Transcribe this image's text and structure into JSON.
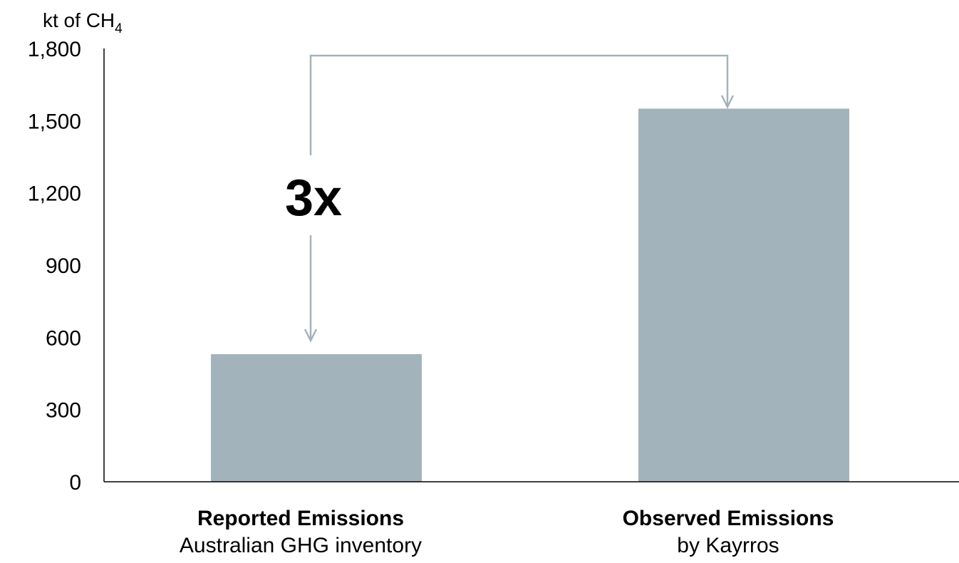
{
  "chart_data": {
    "type": "bar",
    "ylabel_main": "kt of CH",
    "ylabel_subscript": "4",
    "ylim": [
      0,
      1800
    ],
    "y_ticks": [
      "0",
      "300",
      "600",
      "900",
      "1,200",
      "1,500",
      "1,800"
    ],
    "y_tick_values": [
      0,
      300,
      600,
      900,
      1200,
      1500,
      1800
    ],
    "grid": false,
    "legend": "none",
    "categories": [
      {
        "title": "Reported Emissions",
        "subtitle": "Australian GHG inventory"
      },
      {
        "title": "Observed Emissions",
        "subtitle": "by Kayrros"
      }
    ],
    "values": [
      530,
      1550
    ],
    "bar_color": "#a3b3bc",
    "annotation": "3x"
  }
}
